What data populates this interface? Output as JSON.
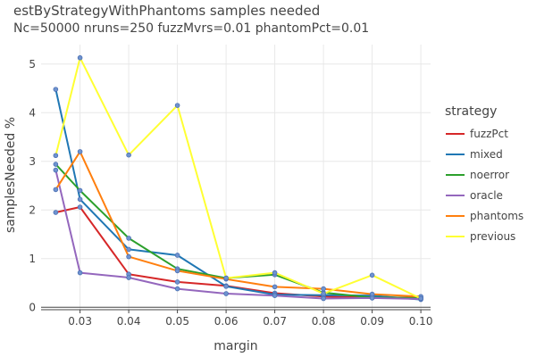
{
  "chart_data": {
    "type": "line",
    "title": "estByStrategyWithPhantoms samples needed",
    "subtitle": "Nc=50000 nruns=250 fuzzMvrs=0.01 phantomPct=0.01",
    "xlabel": "margin",
    "ylabel": "samplesNeeded %",
    "xlim": [
      0.022,
      0.102
    ],
    "ylim": [
      -0.05,
      5.4
    ],
    "x_ticks": [
      "0.03",
      "0.04",
      "0.05",
      "0.06",
      "0.07",
      "0.08",
      "0.09",
      "0.10"
    ],
    "x_tick_values": [
      0.03,
      0.04,
      0.05,
      0.06,
      0.07,
      0.08,
      0.09,
      0.1
    ],
    "y_ticks": [
      "0",
      "1",
      "2",
      "3",
      "4",
      "5"
    ],
    "y_tick_values": [
      0,
      1,
      2,
      3,
      4,
      5
    ],
    "grid": true,
    "legend_title": "strategy",
    "legend_position": "right",
    "x": [
      0.025,
      0.03,
      0.04,
      0.05,
      0.06,
      0.07,
      0.08,
      0.09,
      0.1
    ],
    "series": [
      {
        "name": "fuzzPct",
        "color": "#d62728",
        "values": [
          1.95,
          2.06,
          0.68,
          0.52,
          0.44,
          0.29,
          0.22,
          0.2,
          0.2
        ]
      },
      {
        "name": "mixed",
        "color": "#1f77b4",
        "values": [
          4.48,
          2.22,
          1.19,
          1.07,
          0.43,
          0.26,
          0.25,
          0.24,
          0.16
        ]
      },
      {
        "name": "noerror",
        "color": "#2ca02c",
        "values": [
          2.94,
          2.4,
          1.42,
          0.79,
          0.6,
          0.67,
          0.3,
          0.2,
          0.19
        ]
      },
      {
        "name": "oracle",
        "color": "#9467bd",
        "values": [
          2.82,
          0.71,
          0.61,
          0.38,
          0.28,
          0.24,
          0.18,
          0.19,
          0.17
        ]
      },
      {
        "name": "phantoms",
        "color": "#ff7f0e",
        "values": [
          2.42,
          3.2,
          1.04,
          0.75,
          0.58,
          0.42,
          0.38,
          0.27,
          0.22
        ]
      },
      {
        "name": "previous",
        "color": "#ffff33",
        "values": [
          3.12,
          5.13,
          3.13,
          4.15,
          0.6,
          0.71,
          0.28,
          0.66,
          0.18
        ]
      }
    ]
  }
}
